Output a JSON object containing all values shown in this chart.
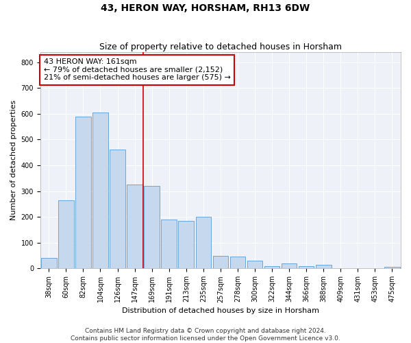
{
  "title": "43, HERON WAY, HORSHAM, RH13 6DW",
  "subtitle": "Size of property relative to detached houses in Horsham",
  "xlabel": "Distribution of detached houses by size in Horsham",
  "ylabel": "Number of detached properties",
  "bar_labels": [
    "38sqm",
    "60sqm",
    "82sqm",
    "104sqm",
    "126sqm",
    "147sqm",
    "169sqm",
    "191sqm",
    "213sqm",
    "235sqm",
    "257sqm",
    "278sqm",
    "300sqm",
    "322sqm",
    "344sqm",
    "366sqm",
    "388sqm",
    "409sqm",
    "431sqm",
    "453sqm",
    "475sqm"
  ],
  "bar_values": [
    40,
    265,
    590,
    605,
    460,
    325,
    320,
    190,
    185,
    200,
    50,
    45,
    30,
    10,
    20,
    10,
    15,
    0,
    0,
    0,
    5
  ],
  "bar_color": "#c5d8ed",
  "bar_edge_color": "#5b9bd5",
  "vline_x": 6.0,
  "vline_color": "#cc0000",
  "annotation_line1": "43 HERON WAY: 161sqm",
  "annotation_line2": "← 79% of detached houses are smaller (2,152)",
  "annotation_line3": "21% of semi-detached houses are larger (575) →",
  "annotation_box_color": "#cc0000",
  "ylim": [
    0,
    840
  ],
  "yticks": [
    0,
    100,
    200,
    300,
    400,
    500,
    600,
    700,
    800
  ],
  "footer_line1": "Contains HM Land Registry data © Crown copyright and database right 2024.",
  "footer_line2": "Contains public sector information licensed under the Open Government Licence v3.0.",
  "bg_color": "#eef2f8",
  "grid_color": "#ffffff",
  "title_fontsize": 10,
  "subtitle_fontsize": 9,
  "axis_label_fontsize": 8,
  "tick_fontsize": 7,
  "annotation_fontsize": 8,
  "footer_fontsize": 6.5
}
